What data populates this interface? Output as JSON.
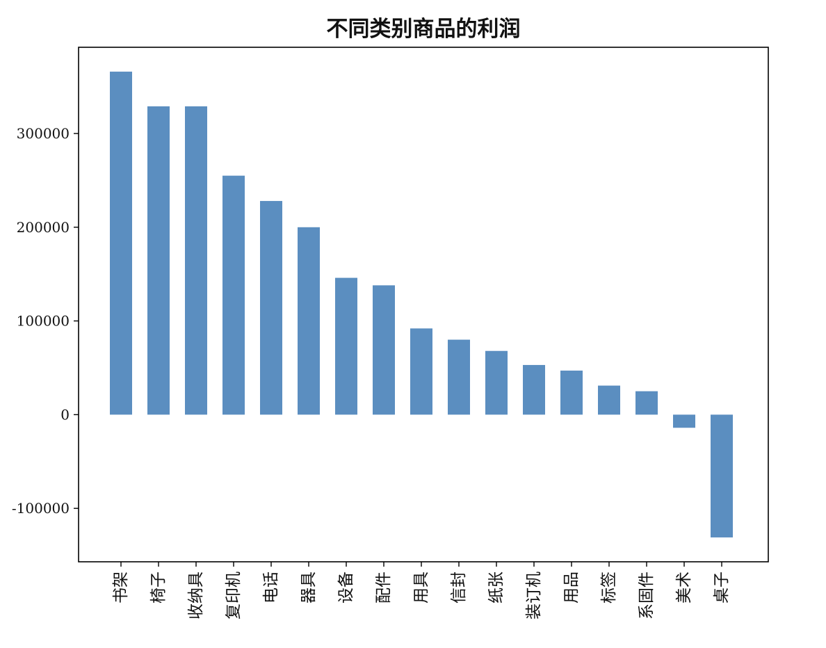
{
  "chart_data": {
    "type": "bar",
    "title": "不同类别商品的利润",
    "xlabel": "",
    "ylabel": "",
    "categories": [
      "书架",
      "椅子",
      "收纳具",
      "复印机",
      "电话",
      "器具",
      "设备",
      "配件",
      "用具",
      "信封",
      "纸张",
      "装订机",
      "用品",
      "标签",
      "系固件",
      "美术",
      "桌子"
    ],
    "values": [
      366000,
      329000,
      329000,
      255000,
      228000,
      200000,
      146000,
      138000,
      92000,
      80000,
      68000,
      53000,
      47000,
      31000,
      25000,
      -14000,
      -131000
    ],
    "ylim": [
      -157000,
      392000
    ],
    "yticks": [
      -100000,
      0,
      100000,
      200000,
      300000
    ],
    "ytick_labels": [
      "-100000",
      "0",
      "100000",
      "200000",
      "300000"
    ],
    "bar_color": "#5b8ec0",
    "grid": false,
    "legend": "none"
  }
}
